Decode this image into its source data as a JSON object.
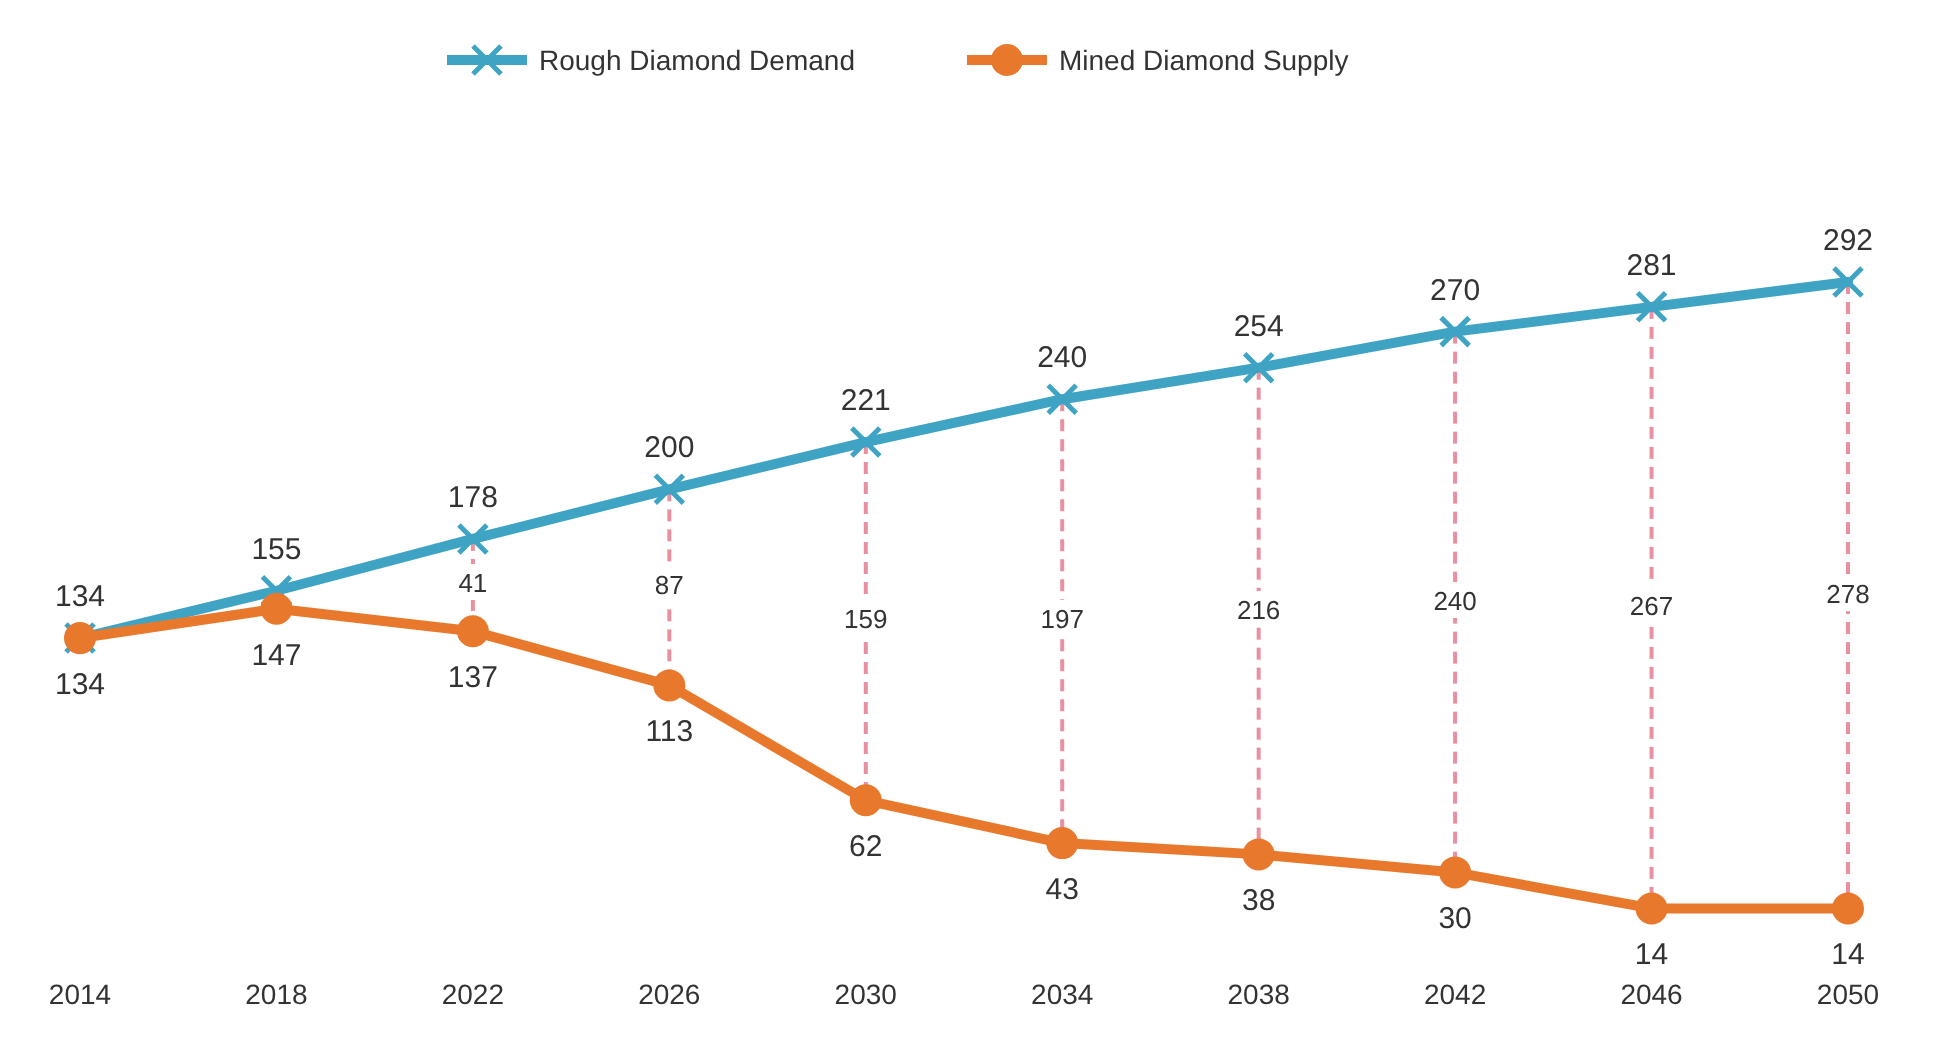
{
  "chart_data": {
    "type": "line",
    "categories": [
      "2014",
      "2018",
      "2022",
      "2026",
      "2030",
      "2034",
      "2038",
      "2042",
      "2046",
      "2050"
    ],
    "series": [
      {
        "name": "Rough Diamond Demand",
        "color": "#3fa3c4",
        "marker": "cross",
        "values": [
          134,
          155,
          178,
          200,
          221,
          240,
          254,
          270,
          281,
          292
        ]
      },
      {
        "name": "Mined Diamond Supply",
        "color": "#e8792c",
        "marker": "circle",
        "values": [
          134,
          147,
          137,
          113,
          62,
          43,
          38,
          30,
          14,
          14
        ]
      }
    ],
    "annotations": [
      {
        "text": "41",
        "x": "2022",
        "y": 158
      },
      {
        "text": "87",
        "x": "2026",
        "y": 157
      },
      {
        "text": "159",
        "x": "2030",
        "y": 142
      },
      {
        "text": "197",
        "x": "2034",
        "y": 142
      },
      {
        "text": "216",
        "x": "2038",
        "y": 146
      },
      {
        "text": "240",
        "x": "2042",
        "y": 150
      },
      {
        "text": "267",
        "x": "2046",
        "y": 148
      },
      {
        "text": "278",
        "x": "2050",
        "y": 153
      }
    ],
    "data_labels": true,
    "legend": "top",
    "line_style": "solid"
  }
}
